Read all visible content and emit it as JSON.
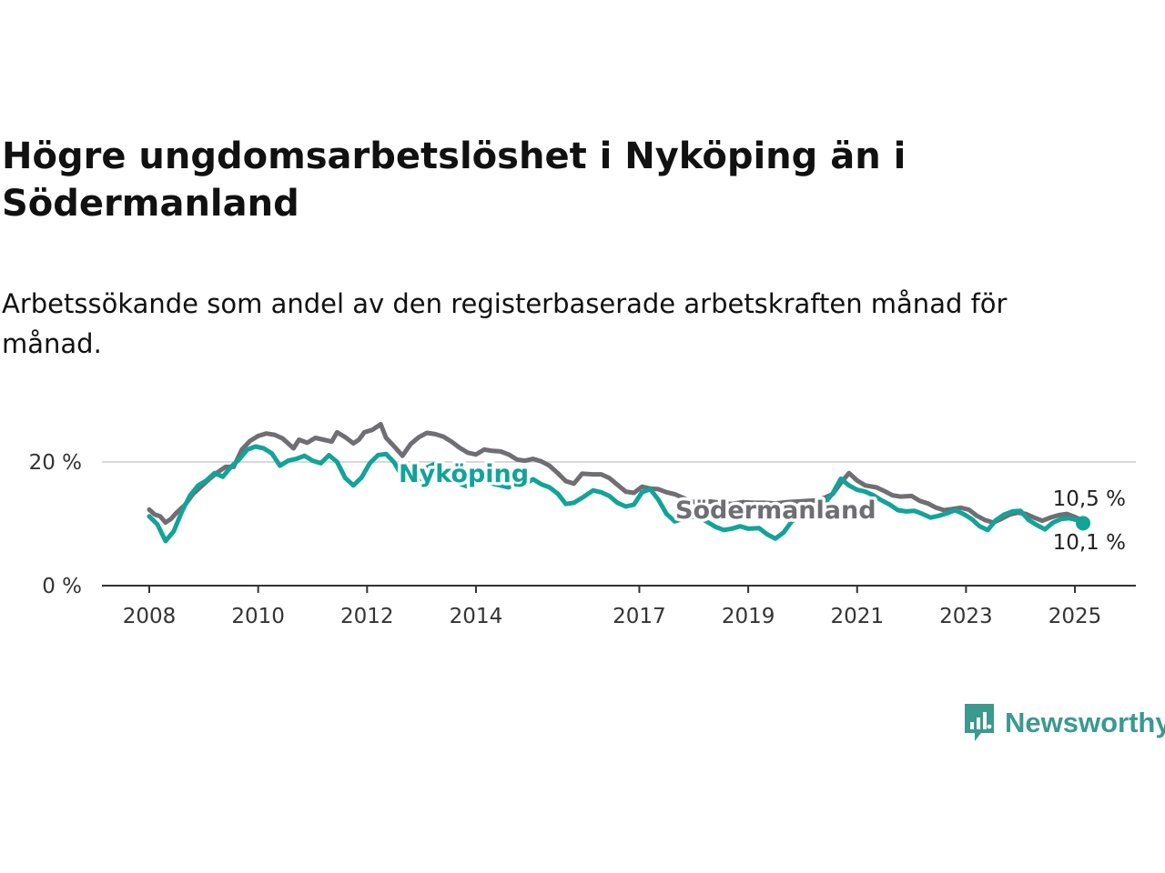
{
  "title": "Högre ungdomsarbetslöshet i Nyköping än i Södermanland",
  "subtitle": "Arbetssökande som andel av den registerbaserade arbetskraften månad för månad.",
  "brand": {
    "name": "Newsworthy",
    "color": "#3b9990",
    "icon": "newsworthy-logo-icon"
  },
  "chart_data": {
    "type": "line",
    "xlim": [
      2008.0,
      2025.25
    ],
    "ylim": [
      0,
      30
    ],
    "grid": "horizontal",
    "legend": "inline labels",
    "x_ticks": [
      {
        "value": 2008,
        "label": "2008"
      },
      {
        "value": 2010,
        "label": "2010"
      },
      {
        "value": 2012,
        "label": "2012"
      },
      {
        "value": 2014,
        "label": "2014"
      },
      {
        "value": 2017,
        "label": "2017"
      },
      {
        "value": 2019,
        "label": "2019"
      },
      {
        "value": 2021,
        "label": "2021"
      },
      {
        "value": 2023,
        "label": "2023"
      },
      {
        "value": 2025,
        "label": "2025"
      }
    ],
    "y_ticks": [
      {
        "value": 0,
        "label": "0 %"
      },
      {
        "value": 20,
        "label": "20 %"
      }
    ],
    "series": [
      {
        "name": "Södermanland",
        "color": "#6e6e73",
        "end_label": "10,5 %",
        "points": [
          [
            2008.0,
            12.3
          ],
          [
            2008.1,
            11.5
          ],
          [
            2008.2,
            11.2
          ],
          [
            2008.3,
            10.2
          ],
          [
            2008.4,
            10.8
          ],
          [
            2008.5,
            11.8
          ],
          [
            2008.65,
            13.0
          ],
          [
            2008.8,
            14.8
          ],
          [
            2008.95,
            16.0
          ],
          [
            2009.1,
            17.2
          ],
          [
            2009.25,
            18.3
          ],
          [
            2009.4,
            19.2
          ],
          [
            2009.55,
            19.2
          ],
          [
            2009.7,
            22.0
          ],
          [
            2009.85,
            23.4
          ],
          [
            2010.0,
            24.2
          ],
          [
            2010.15,
            24.6
          ],
          [
            2010.3,
            24.4
          ],
          [
            2010.45,
            23.8
          ],
          [
            2010.55,
            23.0
          ],
          [
            2010.65,
            22.2
          ],
          [
            2010.75,
            23.6
          ],
          [
            2010.9,
            23.1
          ],
          [
            2011.05,
            23.9
          ],
          [
            2011.2,
            23.6
          ],
          [
            2011.35,
            23.3
          ],
          [
            2011.45,
            24.8
          ],
          [
            2011.6,
            24.0
          ],
          [
            2011.75,
            23.0
          ],
          [
            2011.85,
            23.6
          ],
          [
            2011.95,
            24.8
          ],
          [
            2012.1,
            25.2
          ],
          [
            2012.25,
            26.1
          ],
          [
            2012.35,
            23.9
          ],
          [
            2012.5,
            22.5
          ],
          [
            2012.65,
            21.0
          ],
          [
            2012.8,
            22.9
          ],
          [
            2012.95,
            24.0
          ],
          [
            2013.1,
            24.7
          ],
          [
            2013.25,
            24.5
          ],
          [
            2013.4,
            24.1
          ],
          [
            2013.55,
            23.3
          ],
          [
            2013.7,
            22.3
          ],
          [
            2013.85,
            21.5
          ],
          [
            2014.0,
            21.2
          ],
          [
            2014.15,
            22.0
          ],
          [
            2014.3,
            21.8
          ],
          [
            2014.45,
            21.7
          ],
          [
            2014.6,
            21.2
          ],
          [
            2014.75,
            20.4
          ],
          [
            2014.9,
            20.2
          ],
          [
            2015.05,
            20.5
          ],
          [
            2015.2,
            20.1
          ],
          [
            2015.35,
            19.4
          ],
          [
            2015.5,
            18.2
          ],
          [
            2015.65,
            16.9
          ],
          [
            2015.8,
            16.5
          ],
          [
            2015.95,
            18.1
          ],
          [
            2016.15,
            18.0
          ],
          [
            2016.3,
            18.0
          ],
          [
            2016.45,
            17.4
          ],
          [
            2016.6,
            16.3
          ],
          [
            2016.75,
            15.2
          ],
          [
            2016.9,
            15.0
          ],
          [
            2017.05,
            16.0
          ],
          [
            2017.2,
            15.7
          ],
          [
            2017.35,
            15.6
          ],
          [
            2017.5,
            15.1
          ],
          [
            2017.65,
            14.8
          ],
          [
            2017.8,
            14.2
          ],
          [
            2017.95,
            13.6
          ],
          [
            2018.1,
            13.4
          ],
          [
            2018.3,
            13.6
          ],
          [
            2018.5,
            13.4
          ],
          [
            2018.7,
            13.2
          ],
          [
            2018.9,
            13.5
          ],
          [
            2019.1,
            13.4
          ],
          [
            2019.3,
            13.4
          ],
          [
            2019.5,
            13.3
          ],
          [
            2019.7,
            13.5
          ],
          [
            2019.9,
            13.6
          ],
          [
            2020.1,
            13.7
          ],
          [
            2020.25,
            13.8
          ],
          [
            2020.4,
            14.2
          ],
          [
            2020.55,
            14.8
          ],
          [
            2020.7,
            16.6
          ],
          [
            2020.85,
            18.2
          ],
          [
            2021.0,
            17.0
          ],
          [
            2021.15,
            16.2
          ],
          [
            2021.35,
            15.9
          ],
          [
            2021.5,
            15.3
          ],
          [
            2021.65,
            14.6
          ],
          [
            2021.8,
            14.4
          ],
          [
            2022.0,
            14.5
          ],
          [
            2022.15,
            13.7
          ],
          [
            2022.3,
            13.3
          ],
          [
            2022.45,
            12.6
          ],
          [
            2022.6,
            12.2
          ],
          [
            2022.75,
            12.4
          ],
          [
            2022.9,
            12.6
          ],
          [
            2023.05,
            12.3
          ],
          [
            2023.2,
            11.3
          ],
          [
            2023.35,
            10.6
          ],
          [
            2023.5,
            10.2
          ],
          [
            2023.65,
            10.8
          ],
          [
            2023.8,
            11.5
          ],
          [
            2023.95,
            11.8
          ],
          [
            2024.1,
            11.6
          ],
          [
            2024.25,
            11.0
          ],
          [
            2024.4,
            10.5
          ],
          [
            2024.55,
            11.0
          ],
          [
            2024.7,
            11.4
          ],
          [
            2024.85,
            11.6
          ],
          [
            2025.0,
            11.1
          ],
          [
            2025.15,
            10.5
          ]
        ]
      },
      {
        "name": "Nyköping",
        "color": "#12a399",
        "end_label": "10,1 %",
        "points": [
          [
            2008.0,
            11.2
          ],
          [
            2008.15,
            9.9
          ],
          [
            2008.3,
            7.2
          ],
          [
            2008.45,
            8.8
          ],
          [
            2008.6,
            12.0
          ],
          [
            2008.75,
            14.6
          ],
          [
            2008.9,
            16.2
          ],
          [
            2009.05,
            17.0
          ],
          [
            2009.2,
            18.2
          ],
          [
            2009.35,
            17.6
          ],
          [
            2009.5,
            19.2
          ],
          [
            2009.65,
            20.4
          ],
          [
            2009.8,
            22.0
          ],
          [
            2009.95,
            22.5
          ],
          [
            2010.1,
            22.2
          ],
          [
            2010.25,
            21.4
          ],
          [
            2010.4,
            19.4
          ],
          [
            2010.55,
            20.2
          ],
          [
            2010.7,
            20.5
          ],
          [
            2010.85,
            21.0
          ],
          [
            2011.0,
            20.2
          ],
          [
            2011.15,
            19.8
          ],
          [
            2011.3,
            21.1
          ],
          [
            2011.45,
            20.0
          ],
          [
            2011.6,
            17.4
          ],
          [
            2011.75,
            16.2
          ],
          [
            2011.9,
            17.5
          ],
          [
            2012.05,
            19.8
          ],
          [
            2012.2,
            21.1
          ],
          [
            2012.35,
            21.3
          ],
          [
            2012.5,
            19.9
          ],
          [
            2012.65,
            17.6
          ],
          [
            2012.8,
            16.8
          ],
          [
            2012.95,
            16.9
          ],
          [
            2013.1,
            19.1
          ],
          [
            2013.25,
            19.7
          ],
          [
            2013.4,
            19.0
          ],
          [
            2013.55,
            17.8
          ],
          [
            2013.7,
            16.5
          ],
          [
            2013.85,
            16.0
          ],
          [
            2014.0,
            17.2
          ],
          [
            2014.15,
            16.9
          ],
          [
            2014.3,
            16.5
          ],
          [
            2014.45,
            16.2
          ],
          [
            2014.6,
            15.9
          ],
          [
            2014.75,
            16.6
          ],
          [
            2014.9,
            16.5
          ],
          [
            2015.05,
            17.2
          ],
          [
            2015.2,
            16.4
          ],
          [
            2015.35,
            15.9
          ],
          [
            2015.5,
            14.9
          ],
          [
            2015.65,
            13.2
          ],
          [
            2015.8,
            13.4
          ],
          [
            2015.95,
            14.2
          ],
          [
            2016.15,
            15.4
          ],
          [
            2016.3,
            15.1
          ],
          [
            2016.45,
            14.5
          ],
          [
            2016.6,
            13.4
          ],
          [
            2016.75,
            12.8
          ],
          [
            2016.9,
            13.1
          ],
          [
            2017.05,
            15.1
          ],
          [
            2017.2,
            15.6
          ],
          [
            2017.35,
            13.9
          ],
          [
            2017.5,
            11.6
          ],
          [
            2017.65,
            10.4
          ],
          [
            2017.8,
            10.8
          ],
          [
            2017.95,
            11.1
          ],
          [
            2018.1,
            11.1
          ],
          [
            2018.25,
            10.3
          ],
          [
            2018.4,
            9.5
          ],
          [
            2018.55,
            9.0
          ],
          [
            2018.7,
            9.2
          ],
          [
            2018.85,
            9.6
          ],
          [
            2019.0,
            9.2
          ],
          [
            2019.2,
            9.3
          ],
          [
            2019.35,
            8.3
          ],
          [
            2019.5,
            7.6
          ],
          [
            2019.65,
            8.6
          ],
          [
            2019.8,
            10.4
          ],
          [
            2019.95,
            11.2
          ],
          [
            2020.1,
            12.2
          ],
          [
            2020.25,
            12.9
          ],
          [
            2020.4,
            13.3
          ],
          [
            2020.55,
            14.9
          ],
          [
            2020.7,
            17.3
          ],
          [
            2020.85,
            16.2
          ],
          [
            2021.0,
            15.5
          ],
          [
            2021.15,
            15.2
          ],
          [
            2021.3,
            14.6
          ],
          [
            2021.45,
            13.8
          ],
          [
            2021.6,
            13.1
          ],
          [
            2021.75,
            12.2
          ],
          [
            2021.9,
            12.0
          ],
          [
            2022.05,
            12.1
          ],
          [
            2022.2,
            11.6
          ],
          [
            2022.35,
            11.0
          ],
          [
            2022.5,
            11.3
          ],
          [
            2022.65,
            11.7
          ],
          [
            2022.8,
            12.2
          ],
          [
            2022.95,
            11.6
          ],
          [
            2023.1,
            10.8
          ],
          [
            2023.25,
            9.6
          ],
          [
            2023.4,
            9.0
          ],
          [
            2023.55,
            10.6
          ],
          [
            2023.7,
            11.5
          ],
          [
            2023.85,
            12.0
          ],
          [
            2024.0,
            12.1
          ],
          [
            2024.15,
            10.6
          ],
          [
            2024.3,
            9.8
          ],
          [
            2024.45,
            9.1
          ],
          [
            2024.6,
            10.2
          ],
          [
            2024.75,
            10.8
          ],
          [
            2024.9,
            10.9
          ],
          [
            2025.05,
            10.6
          ],
          [
            2025.15,
            10.1
          ]
        ]
      }
    ]
  }
}
